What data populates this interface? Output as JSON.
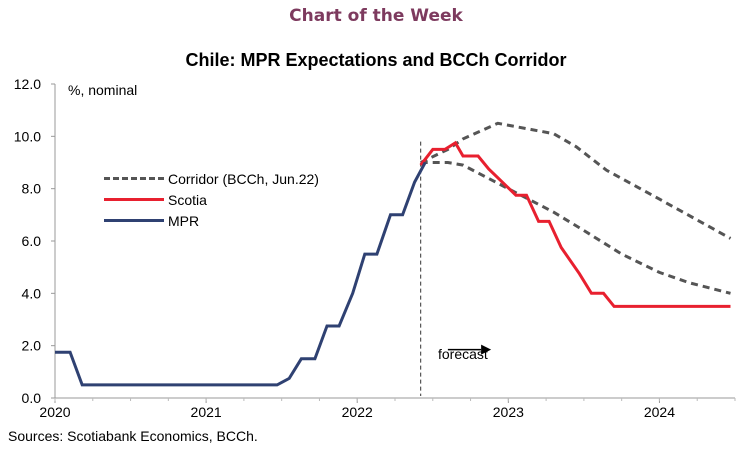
{
  "header": {
    "banner": "Chart of the Week"
  },
  "chart_data": {
    "type": "line",
    "title": "Chile: MPR Expectations and BCCh Corridor",
    "ylabel": "%, nominal",
    "xlabel": "",
    "ylim": [
      0,
      12
    ],
    "xlim": [
      2020.0,
      2024.5
    ],
    "y_ticks": [
      "0.0",
      "2.0",
      "4.0",
      "6.0",
      "8.0",
      "10.0",
      "12.0"
    ],
    "x_ticks": [
      "2020",
      "2021",
      "2022",
      "2023",
      "2024"
    ],
    "grid": false,
    "legend_position": "left",
    "forecast_start": 2022.42,
    "forecast_label": "forecast",
    "source": "Sources: Scotiabank Economics, BCCh.",
    "series": [
      {
        "name": "Corridor (BCCh, Jun.22)",
        "style": "dashed",
        "color": "#555555",
        "upper": [
          [
            2022.42,
            9.0
          ],
          [
            2022.6,
            9.5
          ],
          [
            2022.7,
            9.9
          ],
          [
            2022.93,
            10.5
          ],
          [
            2023.3,
            10.1
          ],
          [
            2023.45,
            9.6
          ],
          [
            2023.65,
            8.7
          ],
          [
            2024.0,
            7.6
          ],
          [
            2024.47,
            6.1
          ]
        ],
        "lower": [
          [
            2022.42,
            9.0
          ],
          [
            2022.6,
            9.0
          ],
          [
            2022.7,
            8.9
          ],
          [
            2023.0,
            8.0
          ],
          [
            2023.3,
            7.1
          ],
          [
            2023.5,
            6.4
          ],
          [
            2023.75,
            5.5
          ],
          [
            2024.0,
            4.8
          ],
          [
            2024.2,
            4.4
          ],
          [
            2024.47,
            4.0
          ]
        ]
      },
      {
        "name": "Scotia",
        "style": "solid",
        "color": "#e8202f",
        "points": [
          [
            2022.42,
            8.9
          ],
          [
            2022.5,
            9.5
          ],
          [
            2022.58,
            9.5
          ],
          [
            2022.65,
            9.75
          ],
          [
            2022.7,
            9.25
          ],
          [
            2022.8,
            9.25
          ],
          [
            2022.87,
            8.75
          ],
          [
            2023.05,
            7.75
          ],
          [
            2023.12,
            7.75
          ],
          [
            2023.2,
            6.75
          ],
          [
            2023.27,
            6.75
          ],
          [
            2023.35,
            5.75
          ],
          [
            2023.47,
            4.75
          ],
          [
            2023.55,
            4.0
          ],
          [
            2023.63,
            4.0
          ],
          [
            2023.7,
            3.5
          ],
          [
            2024.47,
            3.5
          ]
        ]
      },
      {
        "name": "MPR",
        "style": "solid",
        "color": "#2f4172",
        "points": [
          [
            2020.0,
            1.75
          ],
          [
            2020.1,
            1.75
          ],
          [
            2020.18,
            0.5
          ],
          [
            2021.47,
            0.5
          ],
          [
            2021.55,
            0.75
          ],
          [
            2021.63,
            1.5
          ],
          [
            2021.72,
            1.5
          ],
          [
            2021.8,
            2.75
          ],
          [
            2021.88,
            2.75
          ],
          [
            2021.97,
            4.0
          ],
          [
            2022.05,
            5.5
          ],
          [
            2022.13,
            5.5
          ],
          [
            2022.22,
            7.0
          ],
          [
            2022.3,
            7.0
          ],
          [
            2022.38,
            8.25
          ],
          [
            2022.45,
            9.0
          ]
        ]
      }
    ]
  }
}
